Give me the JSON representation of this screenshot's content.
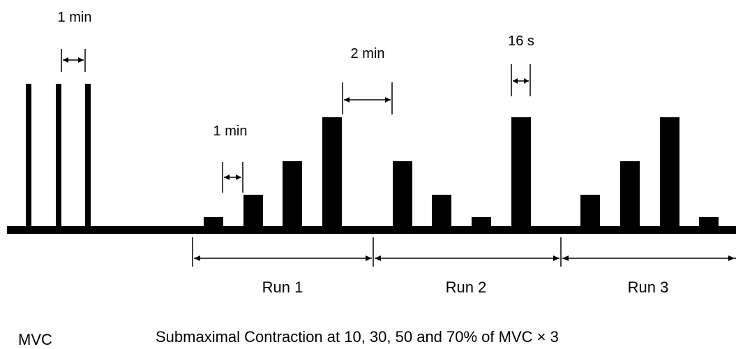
{
  "labels": {
    "mvc_interval": "1 min",
    "sub_interval": "1 min",
    "run_gap": "2 min",
    "duration": "16 s",
    "run1": "Run 1",
    "run2": "Run 2",
    "run3": "Run 3",
    "mvc": "MVC",
    "caption": "Submaximal Contraction at 10, 30, 50 and 70% of MVC × 3"
  },
  "protocol": {
    "mvc_trials": 3,
    "mvc_level_percent": 100,
    "runs": [
      {
        "name": "Run 1",
        "levels_percent_mvc": [
          10,
          30,
          50,
          70
        ]
      },
      {
        "name": "Run 2",
        "levels_percent_mvc": [
          50,
          30,
          10,
          70
        ]
      },
      {
        "name": "Run 3",
        "levels_percent_mvc": [
          30,
          50,
          70,
          10
        ]
      }
    ]
  }
}
